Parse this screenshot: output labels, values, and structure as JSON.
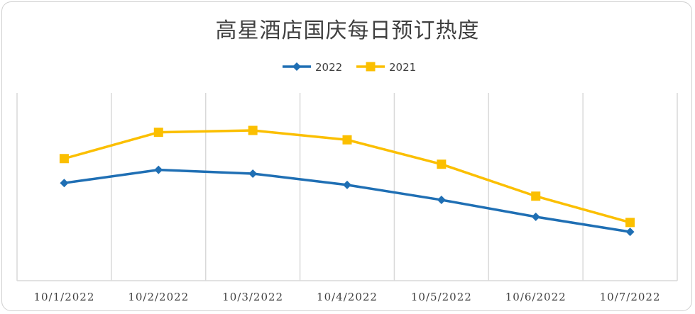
{
  "chart_data": {
    "type": "line",
    "title": "高星酒店国庆每日预订热度",
    "xlabel": "",
    "ylabel": "",
    "categories": [
      "10/1/2022",
      "10/2/2022",
      "10/3/2022",
      "10/4/2022",
      "10/5/2022",
      "10/6/2022",
      "10/7/2022"
    ],
    "series": [
      {
        "name": "2022",
        "color": "#1f6fb4",
        "marker": "diamond",
        "values": [
          52,
          59,
          57,
          51,
          43,
          34,
          26
        ]
      },
      {
        "name": "2021",
        "color": "#fbbf00",
        "marker": "square",
        "values": [
          65,
          79,
          80,
          75,
          62,
          45,
          31
        ]
      }
    ],
    "ylim": [
      0,
      100
    ],
    "grid": "vertical",
    "legend": "top-center"
  }
}
